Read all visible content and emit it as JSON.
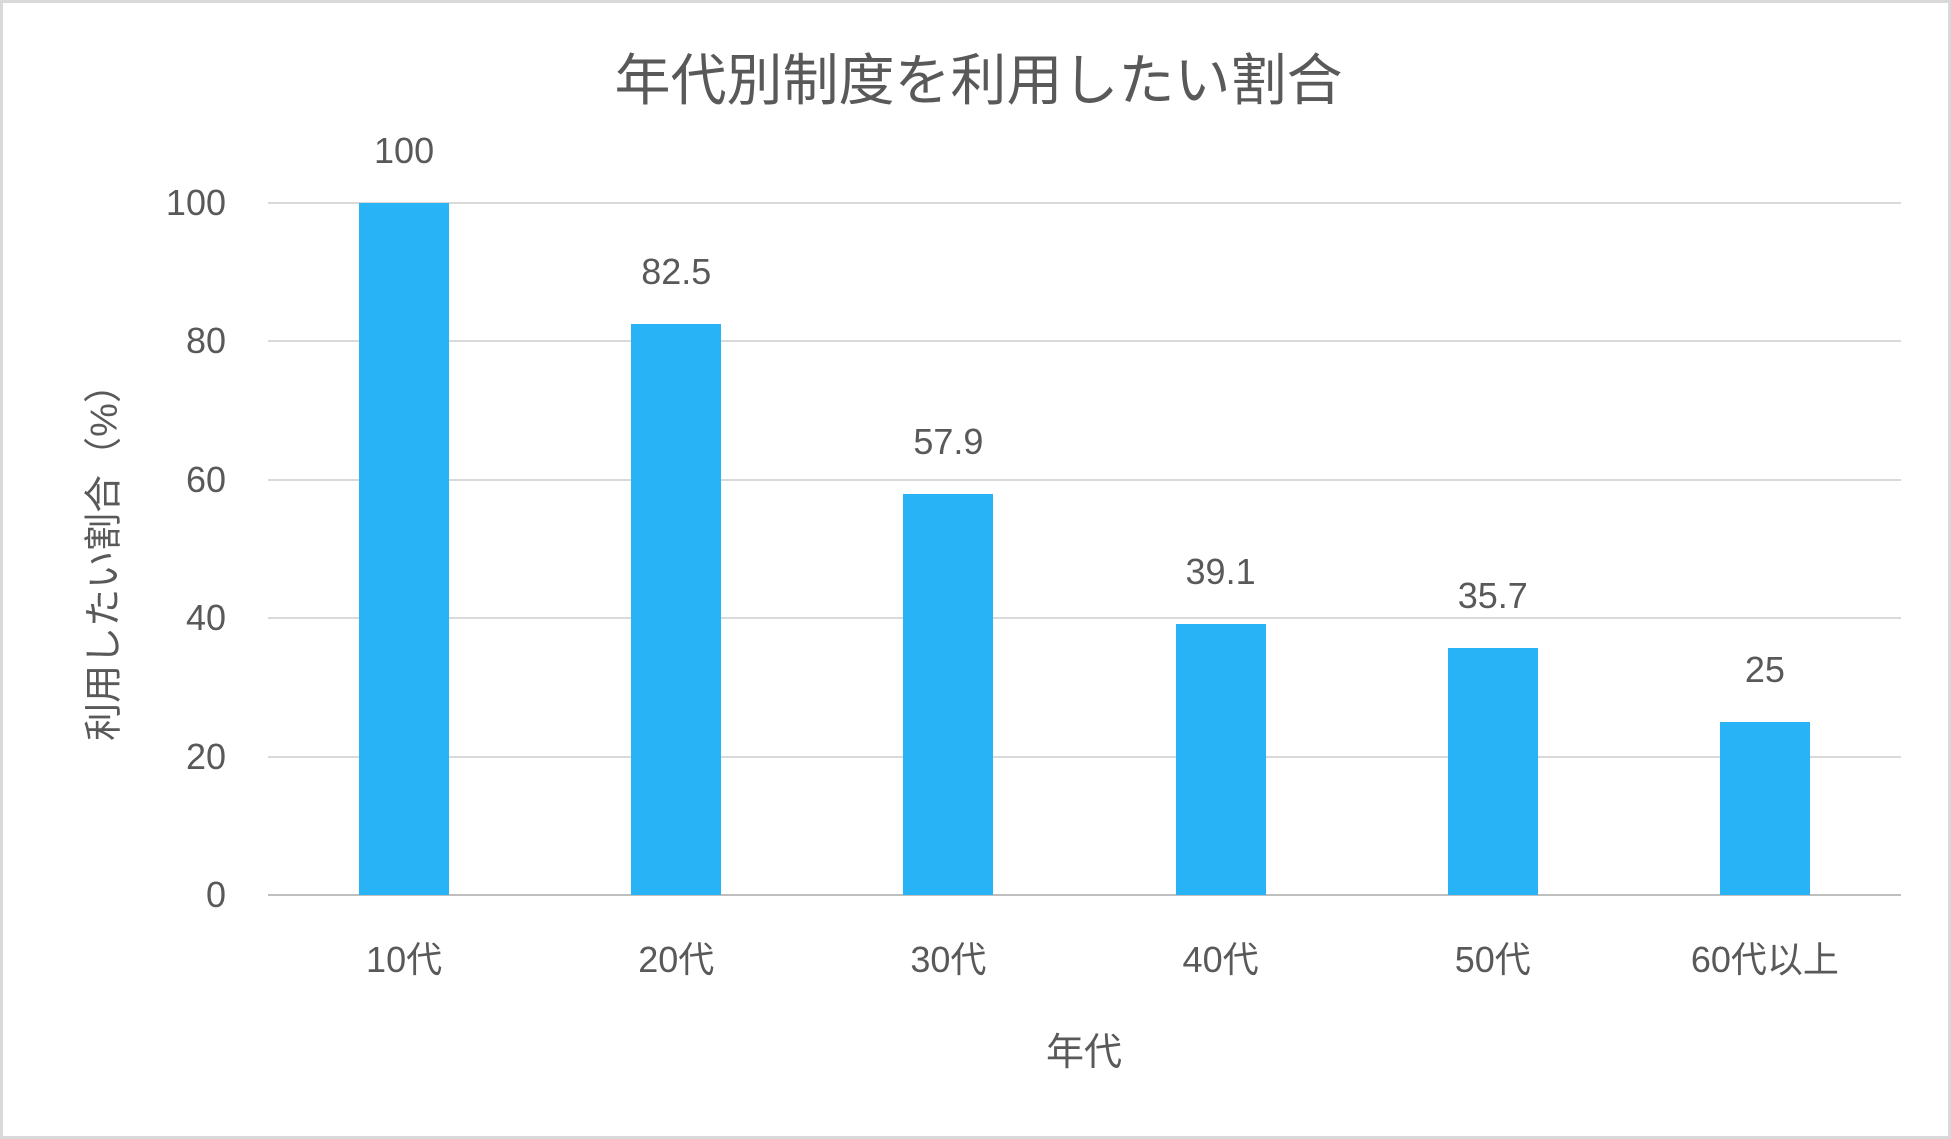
{
  "chart_data": {
    "type": "bar",
    "title": "年代別制度を利用したい割合",
    "xlabel": "年代",
    "ylabel": "利用したい割合（%）",
    "categories": [
      "10代",
      "20代",
      "30代",
      "40代",
      "50代",
      "60代以上"
    ],
    "values": [
      100,
      82.5,
      57.9,
      39.1,
      35.7,
      25
    ],
    "data_labels": [
      "100",
      "82.5",
      "57.9",
      "39.1",
      "35.7",
      "25"
    ],
    "ylim": [
      0,
      100
    ],
    "yticks": [
      0,
      20,
      40,
      60,
      80,
      100
    ],
    "grid": true,
    "legend_position": "none",
    "colors": {
      "bar": "#29b3f7",
      "text": "#595959",
      "gridline": "#d9d9d9",
      "axis_line": "#bfbfbf",
      "page_border": "#d9d9d9",
      "background": "#ffffff"
    }
  }
}
